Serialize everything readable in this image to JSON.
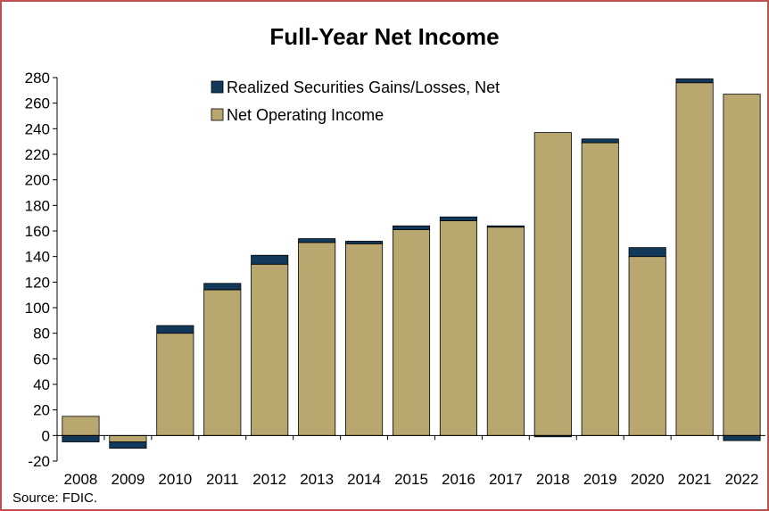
{
  "chart_data": {
    "type": "bar",
    "stacked": true,
    "title": "Full-Year Net Income",
    "source": "Source: FDIC.",
    "categories": [
      "2008",
      "2009",
      "2010",
      "2011",
      "2012",
      "2013",
      "2014",
      "2015",
      "2016",
      "2017",
      "2018",
      "2019",
      "2020",
      "2021",
      "2022"
    ],
    "series": [
      {
        "name": "Realized Securities Gains/Losses, Net",
        "color": "#12395a",
        "values": [
          -5,
          -5,
          6,
          5,
          7,
          3,
          2,
          3,
          3,
          1,
          -1,
          3,
          7,
          3,
          -4
        ]
      },
      {
        "name": "Net Operating Income",
        "color": "#b9a770",
        "values": [
          15,
          -5,
          80,
          114,
          134,
          151,
          150,
          161,
          168,
          163,
          237,
          229,
          140,
          276,
          267
        ]
      }
    ],
    "yticks": [
      280,
      260,
      240,
      220,
      200,
      180,
      160,
      140,
      120,
      100,
      80,
      60,
      40,
      20,
      0,
      -20
    ],
    "ylim": [
      -20,
      280
    ],
    "legend_position": "top-center",
    "grid": false
  }
}
